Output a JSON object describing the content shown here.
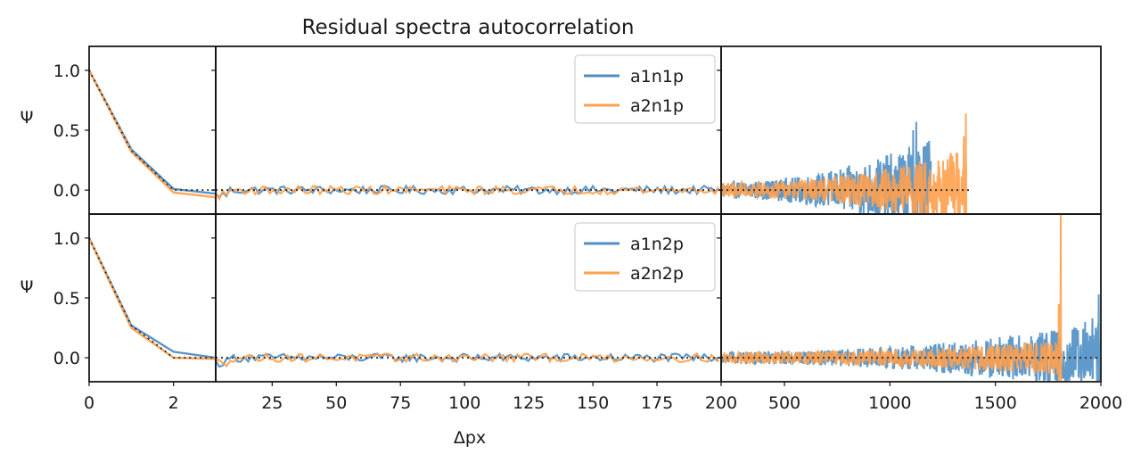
{
  "chart_data": {
    "type": "line",
    "title": "Residual spectra autocorrelation",
    "xlabel": "Δpx",
    "ylabel": "Ψ",
    "colors": {
      "blue": "#4f8fc4",
      "orange": "#ffa04d",
      "reference": "#333333"
    },
    "x_segments": [
      {
        "range": [
          0,
          3
        ],
        "ticks": [
          0,
          2
        ]
      },
      {
        "range": [
          3,
          200
        ],
        "ticks": [
          25,
          50,
          75,
          100,
          125,
          150,
          175,
          200
        ]
      },
      {
        "range": [
          200,
          2000
        ],
        "ticks": [
          500,
          1000,
          1500,
          2000
        ]
      }
    ],
    "ylim": [
      -0.2,
      1.2
    ],
    "yticks": [
      "1.0",
      "0.5",
      "0.0"
    ],
    "rows": [
      {
        "legend_position": "top-right of middle segment",
        "reference": {
          "name": "",
          "style": "dotted",
          "x": [
            0,
            1,
            2,
            3
          ],
          "values": [
            1.0,
            0.33,
            0.0,
            0.0
          ],
          "extends_to": 1380
        },
        "series": [
          {
            "name": "a1n1p",
            "color": "#4f8fc4",
            "x": [
              0,
              1,
              2,
              3
            ],
            "values": [
              1.0,
              0.34,
              0.01,
              -0.03
            ],
            "noise_middle": 0.035,
            "noise_right_start": 0.07,
            "noise_right_end": 0.45,
            "end_x": 1195,
            "spikes": [
              {
                "x": 1125,
                "y": 0.57
              },
              {
                "x": 1110,
                "y": 0.5
              }
            ]
          },
          {
            "name": "a2n1p",
            "color": "#ffa04d",
            "x": [
              0,
              1,
              2,
              3
            ],
            "values": [
              1.0,
              0.32,
              -0.02,
              -0.06
            ],
            "noise_middle": 0.035,
            "noise_right_start": 0.06,
            "noise_right_end": 0.35,
            "end_x": 1365,
            "spikes": [
              {
                "x": 1360,
                "y": 0.64
              },
              {
                "x": 1350,
                "y": 0.45
              }
            ]
          }
        ]
      },
      {
        "legend_position": "top-right of middle segment",
        "reference": {
          "name": "",
          "style": "dotted",
          "x": [
            0,
            1,
            2,
            3
          ],
          "values": [
            1.0,
            0.27,
            0.0,
            0.0
          ],
          "extends_to": 2000
        },
        "series": [
          {
            "name": "a1n2p",
            "color": "#4f8fc4",
            "x": [
              0,
              1,
              2,
              3
            ],
            "values": [
              1.0,
              0.27,
              0.05,
              0.0
            ],
            "noise_middle": 0.035,
            "noise_right_start": 0.05,
            "noise_right_end": 0.3,
            "end_x": 2000,
            "spikes": [
              {
                "x": 1990,
                "y": 0.53
              },
              {
                "x": 1960,
                "y": 0.33
              },
              {
                "x": 1925,
                "y": 0.3
              }
            ]
          },
          {
            "name": "a2n2p",
            "color": "#ffa04d",
            "x": [
              0,
              1,
              2,
              3
            ],
            "values": [
              1.0,
              0.25,
              0.0,
              -0.01
            ],
            "noise_middle": 0.035,
            "noise_right_start": 0.05,
            "noise_right_end": 0.15,
            "end_x": 1815,
            "spikes": [
              {
                "x": 1810,
                "y": 1.2
              },
              {
                "x": 1800,
                "y": 0.45
              }
            ]
          }
        ]
      }
    ]
  }
}
